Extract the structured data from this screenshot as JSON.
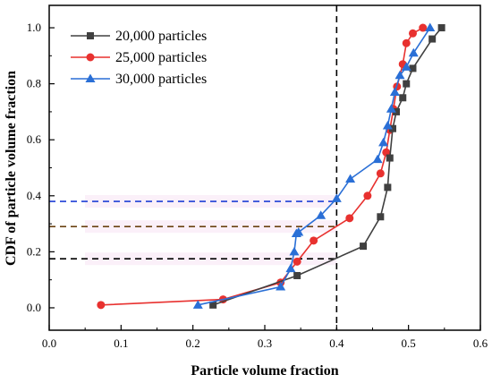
{
  "chart_data": {
    "type": "line",
    "xlabel": "Particle volume fraction",
    "ylabel": "CDF of particle volume fraction",
    "xlim": [
      0.0,
      0.6
    ],
    "ylim": [
      -0.08,
      1.08
    ],
    "xticks": [
      "0.0",
      "0.1",
      "0.2",
      "0.3",
      "0.4",
      "0.5",
      "0.6"
    ],
    "yticks": [
      "0.0",
      "0.2",
      "0.4",
      "0.6",
      "0.8",
      "1.0"
    ],
    "grid": false,
    "legend_position": "top-left",
    "series": [
      {
        "name": "20,000 particles",
        "color": "#404040",
        "marker": "square",
        "x": [
          0.228,
          0.345,
          0.437,
          0.461,
          0.471,
          0.474,
          0.478,
          0.483,
          0.492,
          0.497,
          0.506,
          0.533,
          0.546
        ],
        "y": [
          0.01,
          0.115,
          0.22,
          0.325,
          0.43,
          0.535,
          0.64,
          0.7,
          0.75,
          0.8,
          0.855,
          0.96,
          1.0
        ]
      },
      {
        "name": "25,000 particles",
        "color": "#e8312f",
        "marker": "circle",
        "x": [
          0.072,
          0.242,
          0.322,
          0.345,
          0.368,
          0.418,
          0.443,
          0.461,
          0.469,
          0.474,
          0.479,
          0.484,
          0.492,
          0.497,
          0.506,
          0.52
        ],
        "y": [
          0.01,
          0.03,
          0.09,
          0.165,
          0.24,
          0.32,
          0.4,
          0.48,
          0.555,
          0.635,
          0.71,
          0.79,
          0.87,
          0.945,
          0.98,
          1.0
        ]
      },
      {
        "name": "30,000 particles",
        "color": "#2a6fd6",
        "marker": "triangle",
        "x": [
          0.207,
          0.322,
          0.336,
          0.341,
          0.344,
          0.347,
          0.378,
          0.4,
          0.419,
          0.457,
          0.465,
          0.471,
          0.476,
          0.481,
          0.488,
          0.497,
          0.507,
          0.53
        ],
        "y": [
          0.01,
          0.075,
          0.14,
          0.2,
          0.265,
          0.27,
          0.33,
          0.39,
          0.46,
          0.53,
          0.59,
          0.65,
          0.71,
          0.77,
          0.83,
          0.86,
          0.91,
          1.0
        ]
      }
    ],
    "annotations": {
      "vertical_line": {
        "x": 0.4,
        "color": "#000000",
        "style": "dashed"
      },
      "horizontal_lines": [
        {
          "y": 0.38,
          "color": "#1f3fd6",
          "style": "dashed",
          "x_end": 0.4
        },
        {
          "y": 0.29,
          "color": "#6b4313",
          "style": "dashed",
          "x_end": 0.4
        },
        {
          "y": 0.175,
          "color": "#000000",
          "style": "dashed",
          "x_end": 0.4
        }
      ]
    }
  }
}
